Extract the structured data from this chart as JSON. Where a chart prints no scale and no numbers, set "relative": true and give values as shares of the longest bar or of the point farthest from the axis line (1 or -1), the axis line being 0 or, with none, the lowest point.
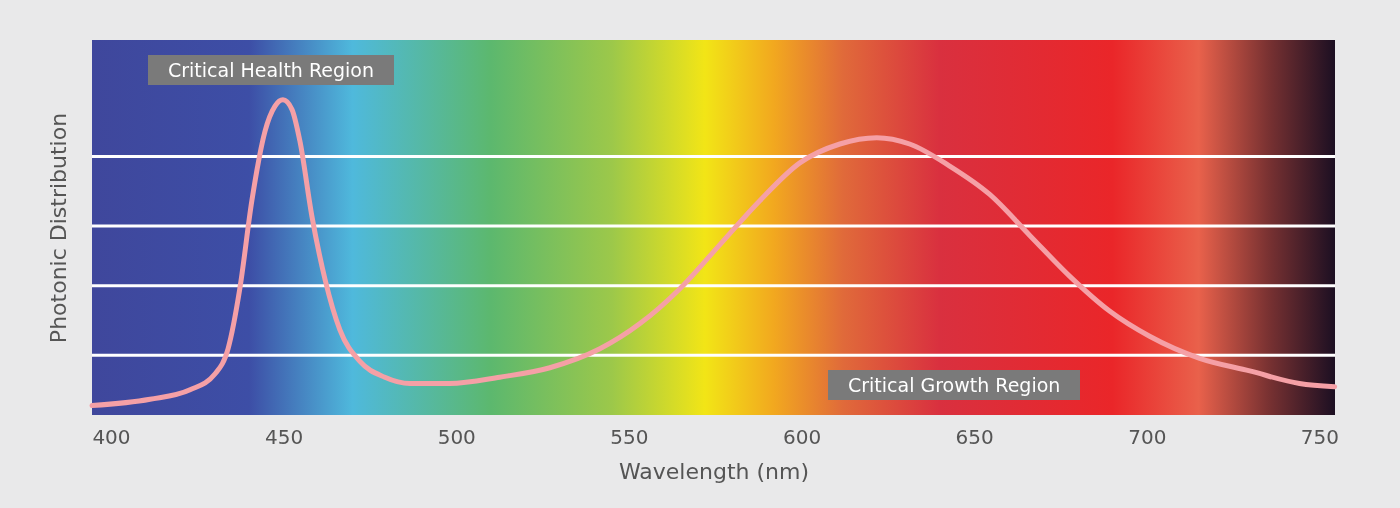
{
  "chart_data": {
    "type": "line",
    "relative": true,
    "xlabel": "Wavelength (nm)",
    "ylabel": "Photonic Distribution",
    "xlim": [
      394.5,
      754.5
    ],
    "xticks": [
      400,
      450,
      500,
      550,
      600,
      650,
      700,
      750
    ],
    "x": [
      394.5,
      411.3,
      422.9,
      430.1,
      433.9,
      437.3,
      440.8,
      444.6,
      447.5,
      449.8,
      452.4,
      454.7,
      458.2,
      462.0,
      466.3,
      472.1,
      479.3,
      486.6,
      498.1,
      512.6,
      527.1,
      541.6,
      553.2,
      564.7,
      576.3,
      587.9,
      599.5,
      611.1,
      621.8,
      631.3,
      642.9,
      654.5,
      666.1,
      677.7,
      689.2,
      700.8,
      715.3,
      729.8,
      744.2,
      754.4
    ],
    "series": [
      {
        "color": "#f5a0a6",
        "values": [
          0.03,
          0.05,
          0.08,
          0.13,
          0.21,
          0.4,
          0.68,
          0.9,
          0.98,
          1,
          0.97,
          0.87,
          0.63,
          0.43,
          0.27,
          0.17,
          0.12,
          0.1,
          0.1,
          0.12,
          0.15,
          0.21,
          0.29,
          0.4,
          0.54,
          0.68,
          0.8,
          0.86,
          0.88,
          0.86,
          0.79,
          0.7,
          0.57,
          0.44,
          0.33,
          0.25,
          0.18,
          0.14,
          0.1,
          0.09
        ]
      }
    ],
    "ref_lines": [
      {
        "axis": "y",
        "value": 0.82,
        "color": "#ffffff"
      },
      {
        "axis": "y",
        "value": 0.6,
        "color": "#ffffff"
      },
      {
        "axis": "y",
        "value": 0.41,
        "color": "#ffffff"
      },
      {
        "axis": "y",
        "value": 0.19,
        "color": "#ffffff"
      }
    ],
    "annotations": [
      "Critical Health Region",
      "Critical Growth Region"
    ]
  }
}
